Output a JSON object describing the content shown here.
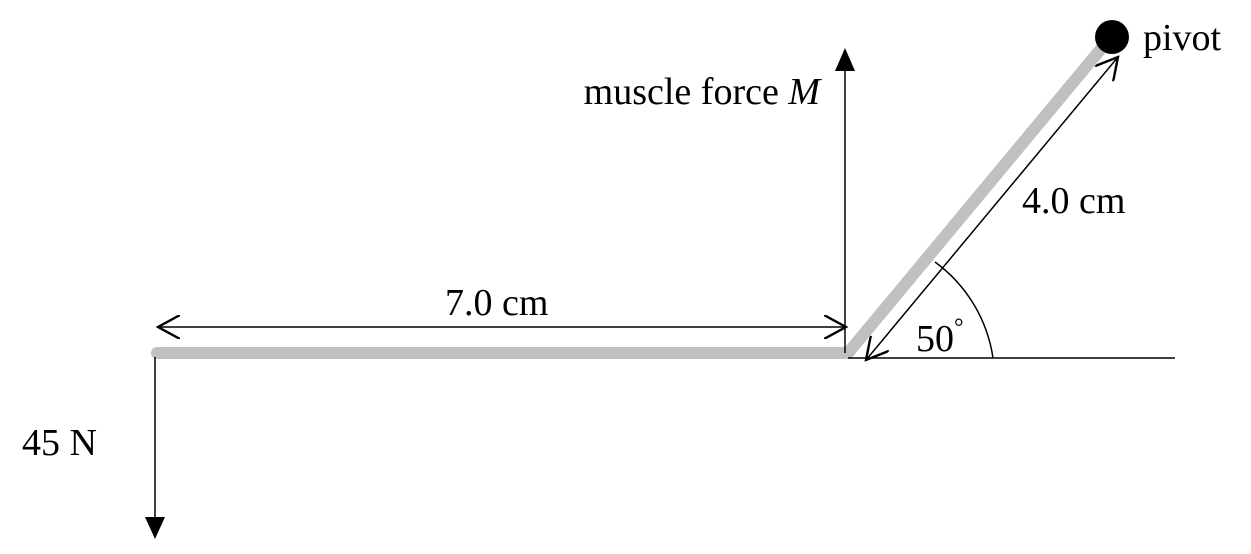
{
  "labels": {
    "pivot": "pivot",
    "muscle_force_prefix": "muscle force ",
    "muscle_force_symbol": "M",
    "upper_length": "4.0 cm",
    "angle_value": "50",
    "angle_unit": "°",
    "lower_length": "7.0 cm",
    "load": "45 N"
  },
  "colors": {
    "bone": "#c0c0c0",
    "ink": "#000000"
  },
  "icons": {
    "pivot": "pivot-dot-icon"
  }
}
